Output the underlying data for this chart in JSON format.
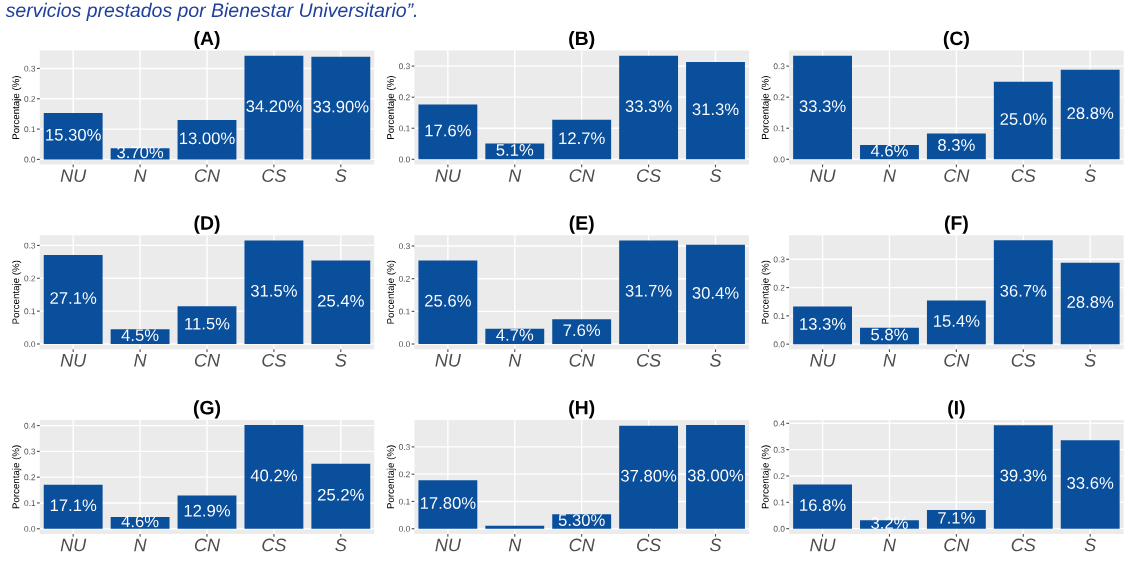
{
  "chart_data": [
    {
      "type": "bar",
      "title": "(A)",
      "annotations": [
        "servicios prestados por Bienestar Universitario”."
      ],
      "ylabel": "Porcentaje (%)",
      "categories": [
        "NU",
        "N",
        "CN",
        "CS",
        "S"
      ],
      "values": [
        0.153,
        0.037,
        0.13,
        0.342,
        0.339
      ],
      "value_labels": [
        "15.30%",
        "3.70%",
        "13.00%",
        "34.20%",
        "33.90%"
      ],
      "color": "#0a4f9c",
      "ylim": [
        -0.017,
        0.359
      ],
      "yticks": [
        {
          "value": 0,
          "label": "0.0"
        },
        {
          "value": 0.1,
          "label": "0.1"
        },
        {
          "value": 0.2,
          "label": "0.2"
        },
        {
          "value": 0.3,
          "label": "0.3"
        }
      ],
      "grid": true
    },
    {
      "type": "bar",
      "title": "(B)",
      "ylabel": "Porcentaje (%)",
      "categories": [
        "NU",
        "N",
        "CN",
        "CS",
        "S"
      ],
      "values": [
        0.176,
        0.051,
        0.127,
        0.333,
        0.313
      ],
      "value_labels": [
        "17.6%",
        "5.1%",
        "12.7%",
        "33.3%",
        "31.3%"
      ],
      "color": "#0a4f9c",
      "ylim": [
        -0.017,
        0.35
      ],
      "yticks": [
        {
          "value": 0,
          "label": "0.0"
        },
        {
          "value": 0.1,
          "label": "0.1"
        },
        {
          "value": 0.2,
          "label": "0.2"
        },
        {
          "value": 0.3,
          "label": "0.3"
        }
      ],
      "grid": true
    },
    {
      "type": "bar",
      "title": "(C)",
      "ylabel": "Porcentaje (%)",
      "categories": [
        "NU",
        "N",
        "CN",
        "CS",
        "S"
      ],
      "values": [
        0.333,
        0.046,
        0.083,
        0.25,
        0.288
      ],
      "value_labels": [
        "33.3%",
        "4.6%",
        "8.3%",
        "25.0%",
        "28.8%"
      ],
      "color": "#0a4f9c",
      "ylim": [
        -0.017,
        0.35
      ],
      "yticks": [
        {
          "value": 0,
          "label": "0.0"
        },
        {
          "value": 0.1,
          "label": "0.1"
        },
        {
          "value": 0.2,
          "label": "0.2"
        },
        {
          "value": 0.3,
          "label": "0.3"
        }
      ],
      "grid": true
    },
    {
      "type": "bar",
      "title": "(D)",
      "ylabel": "Porcentaje (%)",
      "categories": [
        "NU",
        "N",
        "CN",
        "CS",
        "S"
      ],
      "values": [
        0.271,
        0.045,
        0.115,
        0.315,
        0.254
      ],
      "value_labels": [
        "27.1%",
        "4.5%",
        "11.5%",
        "31.5%",
        "25.4%"
      ],
      "color": "#0a4f9c",
      "ylim": [
        -0.016,
        0.331
      ],
      "yticks": [
        {
          "value": 0,
          "label": "0.0"
        },
        {
          "value": 0.1,
          "label": "0.1"
        },
        {
          "value": 0.2,
          "label": "0.2"
        },
        {
          "value": 0.3,
          "label": "0.3"
        }
      ],
      "grid": true
    },
    {
      "type": "bar",
      "title": "(E)",
      "ylabel": "Porcentaje (%)",
      "categories": [
        "NU",
        "N",
        "CN",
        "CS",
        "S"
      ],
      "values": [
        0.256,
        0.047,
        0.076,
        0.317,
        0.304
      ],
      "value_labels": [
        "25.6%",
        "4.7%",
        "7.6%",
        "31.7%",
        "30.4%"
      ],
      "color": "#0a4f9c",
      "ylim": [
        -0.016,
        0.333
      ],
      "yticks": [
        {
          "value": 0,
          "label": "0.0"
        },
        {
          "value": 0.1,
          "label": "0.1"
        },
        {
          "value": 0.2,
          "label": "0.2"
        },
        {
          "value": 0.3,
          "label": "0.3"
        }
      ],
      "grid": true
    },
    {
      "type": "bar",
      "title": "(F)",
      "ylabel": "Porcentaje (%)",
      "categories": [
        "NU",
        "N",
        "CN",
        "CS",
        "S"
      ],
      "values": [
        0.133,
        0.058,
        0.154,
        0.367,
        0.288
      ],
      "value_labels": [
        "13.3%",
        "5.8%",
        "15.4%",
        "36.7%",
        "28.8%"
      ],
      "color": "#0a4f9c",
      "ylim": [
        -0.018,
        0.385
      ],
      "yticks": [
        {
          "value": 0,
          "label": "0.0"
        },
        {
          "value": 0.1,
          "label": "0.1"
        },
        {
          "value": 0.2,
          "label": "0.2"
        },
        {
          "value": 0.3,
          "label": "0.3"
        }
      ],
      "grid": true
    },
    {
      "type": "bar",
      "title": "(G)",
      "ylabel": "Porcentaje (%)",
      "categories": [
        "NU",
        "N",
        "CN",
        "CS",
        "S"
      ],
      "values": [
        0.171,
        0.046,
        0.129,
        0.402,
        0.252
      ],
      "value_labels": [
        "17.1%",
        "4.6%",
        "12.9%",
        "40.2%",
        "25.2%"
      ],
      "color": "#0a4f9c",
      "ylim": [
        -0.02,
        0.422
      ],
      "yticks": [
        {
          "value": 0,
          "label": "0.0"
        },
        {
          "value": 0.1,
          "label": "0.1"
        },
        {
          "value": 0.2,
          "label": "0.2"
        },
        {
          "value": 0.3,
          "label": "0.3"
        },
        {
          "value": 0.4,
          "label": "0.4"
        }
      ],
      "grid": true
    },
    {
      "type": "bar",
      "title": "(H)",
      "ylabel": "Porcentaje (%)",
      "categories": [
        "NU",
        "N",
        "CN",
        "CS",
        "S"
      ],
      "values": [
        0.178,
        0.011,
        0.053,
        0.378,
        0.38
      ],
      "value_labels": [
        "17.80%",
        null,
        "5.30%",
        "37.80%",
        "38.00%"
      ],
      "color": "#0a4f9c",
      "ylim": [
        -0.019,
        0.399
      ],
      "yticks": [
        {
          "value": 0,
          "label": "0.0"
        },
        {
          "value": 0.1,
          "label": "0.1"
        },
        {
          "value": 0.2,
          "label": "0.2"
        },
        {
          "value": 0.3,
          "label": "0.3"
        }
      ],
      "grid": true
    },
    {
      "type": "bar",
      "title": "(I)",
      "ylabel": "Porcentaje (%)",
      "categories": [
        "NU",
        "N",
        "CN",
        "CS",
        "S"
      ],
      "values": [
        0.168,
        0.032,
        0.071,
        0.393,
        0.336
      ],
      "value_labels": [
        "16.8%",
        "3.2%",
        "7.1%",
        "39.3%",
        "33.6%"
      ],
      "color": "#0a4f9c",
      "ylim": [
        -0.02,
        0.413
      ],
      "yticks": [
        {
          "value": 0,
          "label": "0.0"
        },
        {
          "value": 0.1,
          "label": "0.1"
        },
        {
          "value": 0.2,
          "label": "0.2"
        },
        {
          "value": 0.3,
          "label": "0.3"
        },
        {
          "value": 0.4,
          "label": "0.4"
        }
      ],
      "grid": true
    }
  ]
}
